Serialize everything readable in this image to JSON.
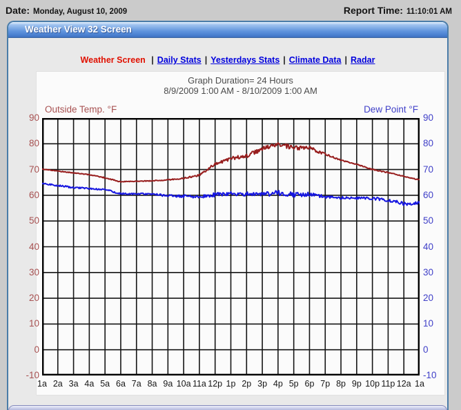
{
  "topbar": {
    "date_label": "Date:",
    "date_value": "Monday, August 10, 2009",
    "time_label": "Report Time:",
    "time_value": "11:10:01 AM"
  },
  "window": {
    "title": "Weather View 32 Screen"
  },
  "nav": {
    "active": "Weather Screen",
    "separator": "|",
    "links": [
      "Daily Stats",
      "Yesterdays Stats",
      "Climate Data",
      "Radar"
    ]
  },
  "colors": {
    "window_border": "#4a7ca8",
    "titlebar_blue": "#4a80d0",
    "nav_active_red": "#e01000",
    "nav_link_blue": "#0000dd",
    "temp_red": "#971d1d",
    "dew_blue": "#1616e0"
  },
  "chart_data": {
    "type": "line",
    "title": "Graph Duration= 24 Hours",
    "subtitle": "8/9/2009 1:00 AM - 8/10/2009 1:00 AM",
    "left_axis": {
      "label": "Outside Temp. °F",
      "tick_color": "#a85252",
      "min": -10,
      "max": 90,
      "step": 10
    },
    "right_axis": {
      "label": "Dew Point °F",
      "tick_color": "#4040c8",
      "min": -10,
      "max": 90,
      "step": 10
    },
    "y_tick_labels": [
      "90",
      "80",
      "70",
      "60",
      "50",
      "40",
      "30",
      "20",
      "10",
      "0",
      "-10"
    ],
    "x_labels": [
      "1a",
      "2a",
      "3a",
      "4a",
      "5a",
      "6a",
      "7a",
      "8a",
      "9a",
      "10a",
      "11a",
      "12p",
      "1p",
      "2p",
      "3p",
      "4p",
      "5p",
      "6p",
      "7p",
      "8p",
      "9p",
      "10p",
      "11p",
      "12a",
      "1a"
    ],
    "grid": {
      "color": "#141414",
      "x_interval_hours": 1,
      "y_interval_deg": 10,
      "border_color": "#000000"
    },
    "legend_position": "top-inline-axis-labels",
    "series": [
      {
        "name": "Outside Temp. °F",
        "color": "#971d1d",
        "values": [
          70.2,
          69.4,
          68.7,
          68.0,
          66.8,
          65.2,
          65.5,
          65.6,
          66.0,
          66.6,
          67.8,
          72.2,
          74.3,
          75.3,
          78.0,
          79.8,
          78.3,
          78.3,
          76.0,
          73.6,
          72.0,
          70.0,
          68.8,
          67.3,
          66.0
        ],
        "noise": [
          0.15,
          0.15,
          0.15,
          0.15,
          0.2,
          0.2,
          0.15,
          0.15,
          0.2,
          0.25,
          0.35,
          0.6,
          0.7,
          0.8,
          0.9,
          0.9,
          0.9,
          0.8,
          0.4,
          0.25,
          0.2,
          0.2,
          0.2,
          0.2,
          0.2
        ]
      },
      {
        "name": "Dew Point °F",
        "color": "#1616e0",
        "values": [
          64.6,
          63.8,
          63.0,
          62.6,
          62.2,
          60.6,
          60.6,
          60.4,
          59.9,
          59.6,
          59.4,
          60.2,
          60.6,
          60.4,
          60.2,
          61.0,
          60.2,
          60.4,
          59.3,
          59.0,
          58.9,
          58.8,
          58.2,
          56.6,
          57.0
        ],
        "noise": [
          0.25,
          0.3,
          0.35,
          0.3,
          0.35,
          0.3,
          0.3,
          0.35,
          0.5,
          0.6,
          0.6,
          0.8,
          0.9,
          0.9,
          0.9,
          1.0,
          0.9,
          0.8,
          0.6,
          0.5,
          0.5,
          0.6,
          0.7,
          0.7,
          0.5
        ]
      }
    ]
  }
}
